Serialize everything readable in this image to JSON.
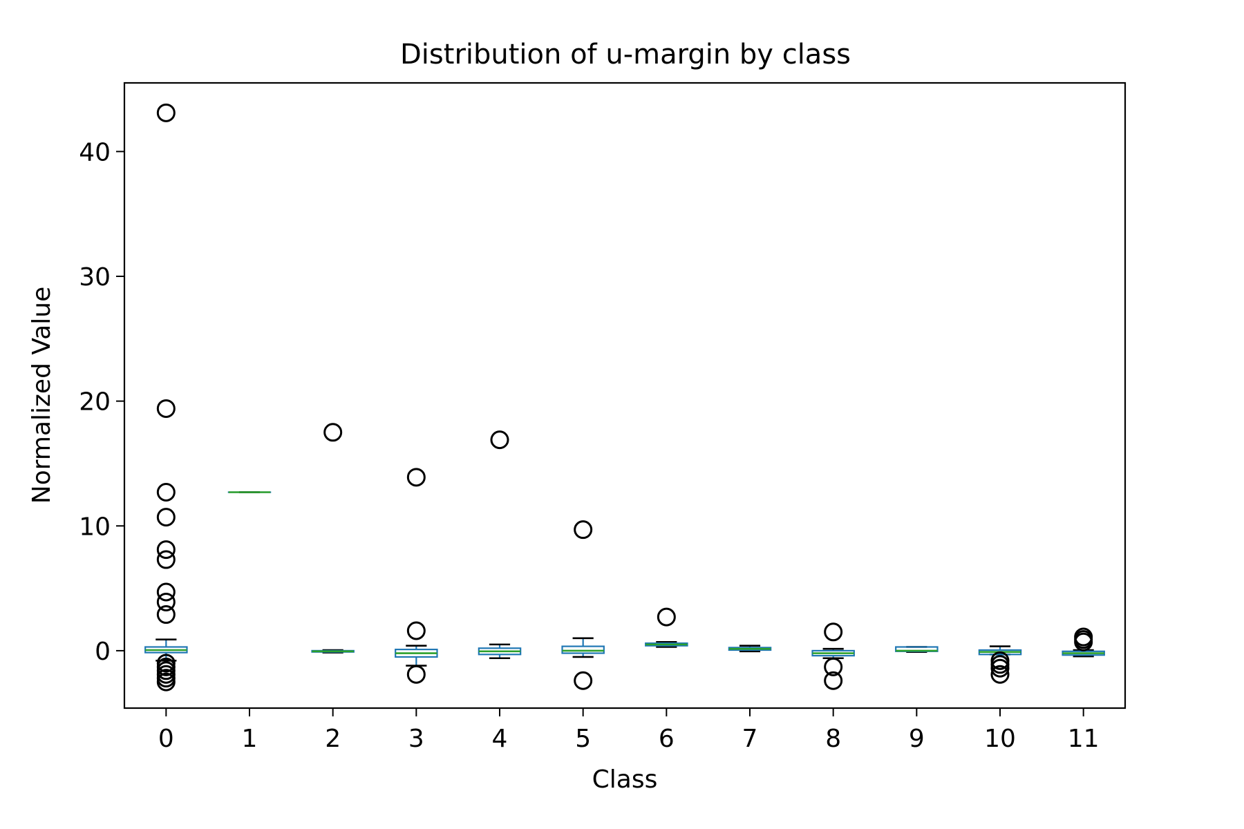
{
  "chart_data": {
    "type": "box",
    "title": "Distribution of u-margin by class",
    "xlabel": "Class",
    "ylabel": "Normalized Value",
    "categories": [
      "0",
      "1",
      "2",
      "3",
      "4",
      "5",
      "6",
      "7",
      "8",
      "9",
      "10",
      "11"
    ],
    "ylim": [
      -4.6,
      45.5
    ],
    "yticks": [
      0,
      10,
      20,
      30,
      40
    ],
    "grid": false,
    "colors": {
      "box": "#1f77b4",
      "median": "#2ca02c",
      "whisker": "#000000",
      "flier": "#000000"
    },
    "boxes": [
      {
        "class": "0",
        "whislo": -0.8,
        "q1": -0.15,
        "med": 0.05,
        "q3": 0.3,
        "whishi": 0.9,
        "fliers": [
          43.1,
          19.4,
          12.7,
          10.7,
          8.1,
          7.3,
          4.7,
          3.9,
          2.9,
          -1.0,
          -1.3,
          -1.6,
          -1.9,
          -2.2,
          -2.5
        ]
      },
      {
        "class": "1",
        "whislo": 12.7,
        "q1": 12.7,
        "med": 12.7,
        "q3": 12.7,
        "whishi": 12.7,
        "fliers": []
      },
      {
        "class": "2",
        "whislo": -0.15,
        "q1": -0.1,
        "med": -0.05,
        "q3": 0.0,
        "whishi": 0.05,
        "fliers": [
          17.5
        ]
      },
      {
        "class": "3",
        "whislo": -1.2,
        "q1": -0.5,
        "med": -0.2,
        "q3": 0.1,
        "whishi": 0.4,
        "fliers": [
          13.9,
          1.6,
          -1.9
        ]
      },
      {
        "class": "4",
        "whislo": -0.6,
        "q1": -0.3,
        "med": -0.05,
        "q3": 0.2,
        "whishi": 0.5,
        "fliers": [
          16.9
        ]
      },
      {
        "class": "5",
        "whislo": -0.5,
        "q1": -0.2,
        "med": 0.0,
        "q3": 0.35,
        "whishi": 1.0,
        "fliers": [
          9.7,
          -2.4
        ]
      },
      {
        "class": "6",
        "whislo": 0.3,
        "q1": 0.4,
        "med": 0.5,
        "q3": 0.6,
        "whishi": 0.7,
        "fliers": [
          2.7
        ]
      },
      {
        "class": "7",
        "whislo": -0.05,
        "q1": 0.05,
        "med": 0.15,
        "q3": 0.25,
        "whishi": 0.4,
        "fliers": []
      },
      {
        "class": "8",
        "whislo": -0.6,
        "q1": -0.4,
        "med": -0.2,
        "q3": 0.0,
        "whishi": 0.15,
        "fliers": [
          1.5,
          -1.3,
          -2.4
        ]
      },
      {
        "class": "9",
        "whislo": -0.1,
        "q1": -0.05,
        "med": 0.0,
        "q3": 0.3,
        "whishi": 0.3,
        "fliers": []
      },
      {
        "class": "10",
        "whislo": -0.3,
        "q1": -0.3,
        "med": -0.1,
        "q3": 0.05,
        "whishi": 0.35,
        "fliers": [
          -0.8,
          -1.1,
          -1.4,
          -1.9
        ]
      },
      {
        "class": "11",
        "whislo": -0.45,
        "q1": -0.35,
        "med": -0.2,
        "q3": -0.05,
        "whishi": 0.05,
        "fliers": [
          1.1,
          0.9,
          0.7
        ]
      }
    ]
  }
}
